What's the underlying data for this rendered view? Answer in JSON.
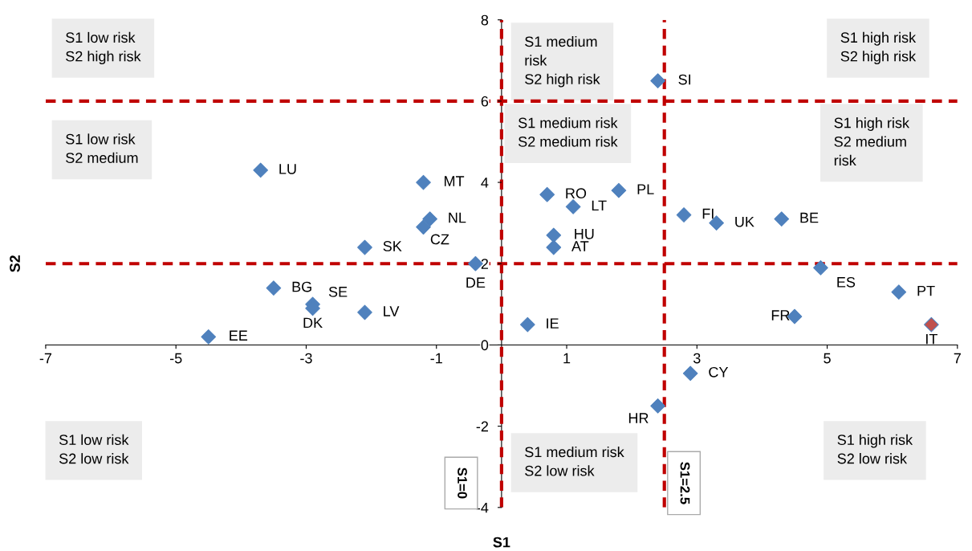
{
  "chart_data": {
    "type": "scatter",
    "xlabel": "S1",
    "ylabel": "S2",
    "marker": "diamond",
    "grid": false,
    "xlim": [
      -7,
      7
    ],
    "ylim": [
      -4,
      8
    ],
    "xticks": [
      -7,
      -5,
      -3,
      -1,
      1,
      3,
      5,
      7
    ],
    "yticks": [
      -4,
      -2,
      0,
      2,
      4,
      6,
      8
    ],
    "series": [
      {
        "color": "#4f81bd",
        "x": [
          -3.7,
          -1.2,
          -1.1,
          -1.2,
          -2.1,
          -3.5,
          -2.9,
          -2.9,
          -2.1,
          -4.5,
          -0.4,
          0.4,
          0.7,
          1.1,
          1.8,
          0.8,
          0.8,
          2.4,
          2.8,
          3.3,
          4.3,
          4.9,
          6.1,
          4.5,
          6.6,
          2.9,
          2.4
        ],
        "values": [
          4.3,
          4.0,
          3.1,
          2.9,
          2.4,
          1.4,
          1.0,
          0.9,
          0.8,
          0.2,
          2.0,
          0.5,
          3.7,
          3.4,
          3.8,
          2.7,
          2.4,
          6.5,
          3.2,
          3.0,
          3.1,
          1.9,
          1.3,
          0.7,
          0.5,
          -0.7,
          -1.5
        ],
        "colors": [
          "#4f81bd",
          "#4f81bd",
          "#4f81bd",
          "#4f81bd",
          "#4f81bd",
          "#4f81bd",
          "#4f81bd",
          "#4f81bd",
          "#4f81bd",
          "#4f81bd",
          "#4f81bd",
          "#4f81bd",
          "#4f81bd",
          "#4f81bd",
          "#4f81bd",
          "#4f81bd",
          "#4f81bd",
          "#4f81bd",
          "#4f81bd",
          "#4f81bd",
          "#4f81bd",
          "#4f81bd",
          "#4f81bd",
          "#4f81bd",
          "#c0504d",
          "#4f81bd",
          "#4f81bd"
        ]
      }
    ],
    "ref_lines": [
      {
        "axis": "y",
        "value": 6,
        "color": "#c00000",
        "line_style": "dashed"
      },
      {
        "axis": "y",
        "value": 2,
        "color": "#c00000",
        "line_style": "dashed"
      },
      {
        "axis": "x",
        "value": 0,
        "label": "S1=0",
        "color": "#c00000",
        "line_style": "dashed"
      },
      {
        "axis": "x",
        "value": 2.5,
        "label": "S1=2.5",
        "color": "#c00000",
        "line_style": "dashed"
      }
    ],
    "annotations": [
      "S1 low risk\nS2 high risk",
      "S1 medium\nrisk\nS2 high risk",
      "S1 high risk\nS2 high risk",
      "S1 low risk\nS2 medium",
      "S1 medium risk\nS2 medium risk",
      "S1 high risk\nS2 medium\nrisk",
      "S1 low risk\nS2 low risk",
      "S1 medium risk\nS2 low risk",
      "S1 high risk\nS2 low risk",
      {
        "text": "LU",
        "x": -3.7,
        "y": 4.3
      },
      {
        "text": "MT",
        "x": -1.2,
        "y": 4.0
      },
      {
        "text": "NL",
        "x": -1.1,
        "y": 3.1
      },
      {
        "text": "CZ",
        "x": -1.2,
        "y": 2.9
      },
      {
        "text": "SK",
        "x": -2.1,
        "y": 2.4
      },
      {
        "text": "BG",
        "x": -3.5,
        "y": 1.4
      },
      {
        "text": "SE",
        "x": -2.9,
        "y": 1.0
      },
      {
        "text": "DK",
        "x": -2.9,
        "y": 0.9
      },
      {
        "text": "LV",
        "x": -2.1,
        "y": 0.8
      },
      {
        "text": "EE",
        "x": -4.5,
        "y": 0.2
      },
      {
        "text": "DE",
        "x": -0.4,
        "y": 2.0
      },
      {
        "text": "IE",
        "x": 0.4,
        "y": 0.5
      },
      {
        "text": "RO",
        "x": 0.7,
        "y": 3.7
      },
      {
        "text": "LT",
        "x": 1.1,
        "y": 3.4
      },
      {
        "text": "PL",
        "x": 1.8,
        "y": 3.8
      },
      {
        "text": "HU",
        "x": 0.8,
        "y": 2.7
      },
      {
        "text": "AT",
        "x": 0.8,
        "y": 2.4
      },
      {
        "text": "SI",
        "x": 2.4,
        "y": 6.5
      },
      {
        "text": "FI",
        "x": 2.8,
        "y": 3.2
      },
      {
        "text": "UK",
        "x": 3.3,
        "y": 3.0
      },
      {
        "text": "BE",
        "x": 4.3,
        "y": 3.1
      },
      {
        "text": "ES",
        "x": 4.9,
        "y": 1.9
      },
      {
        "text": "PT",
        "x": 6.1,
        "y": 1.3
      },
      {
        "text": "FR",
        "x": 4.5,
        "y": 0.7
      },
      {
        "text": "IT",
        "x": 6.6,
        "y": 0.5
      },
      {
        "text": "CY",
        "x": 2.9,
        "y": -0.7
      },
      {
        "text": "HR",
        "x": 2.4,
        "y": -1.5
      }
    ]
  }
}
